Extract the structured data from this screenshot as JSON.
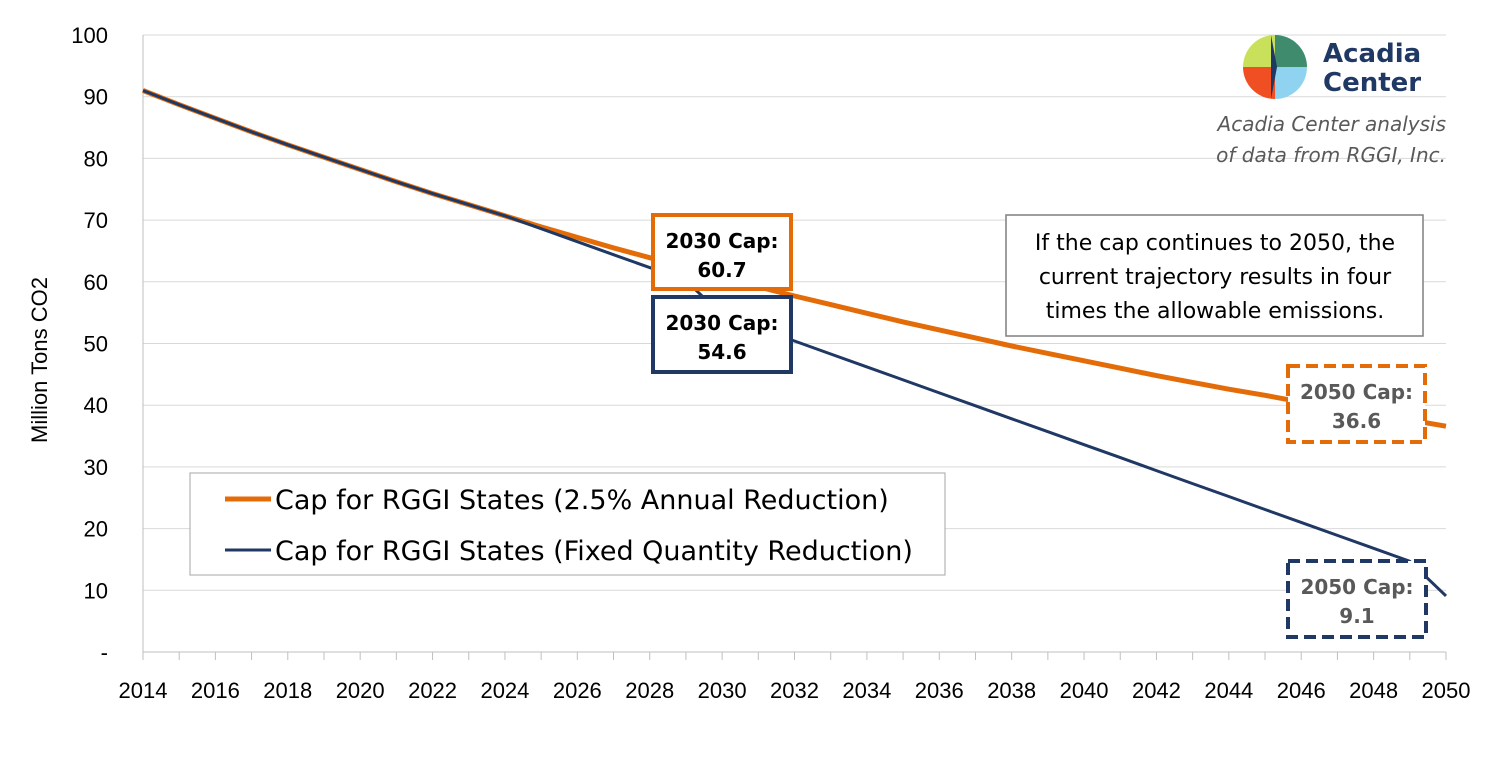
{
  "chart_data": {
    "type": "line",
    "title": "",
    "xlabel": "",
    "ylabel": "Million Tons CO2",
    "xlim": [
      2014,
      2050
    ],
    "ylim": [
      0,
      100
    ],
    "x_ticks": [
      "2014",
      "2016",
      "2018",
      "2020",
      "2022",
      "2024",
      "2026",
      "2028",
      "2030",
      "2032",
      "2034",
      "2036",
      "2038",
      "2040",
      "2042",
      "2044",
      "2046",
      "2048",
      "2050"
    ],
    "y_ticks": [
      "-",
      "10",
      "20",
      "30",
      "40",
      "50",
      "60",
      "70",
      "80",
      "90",
      "100"
    ],
    "grid": true,
    "legend_position": "bottom-left",
    "x": [
      2014,
      2015,
      2016,
      2017,
      2018,
      2019,
      2020,
      2021,
      2022,
      2023,
      2024,
      2025,
      2026,
      2027,
      2028,
      2029,
      2030,
      2031,
      2032,
      2033,
      2034,
      2035,
      2036,
      2037,
      2038,
      2039,
      2040,
      2041,
      2042,
      2043,
      2044,
      2045,
      2046,
      2047,
      2048,
      2049,
      2050
    ],
    "series": [
      {
        "name": "Cap for RGGI States (2.5% Annual Reduction)",
        "color": "#e36c09",
        "values": [
          91.0,
          88.7,
          86.5,
          84.3,
          82.2,
          80.2,
          78.2,
          76.2,
          74.3,
          72.5,
          70.7,
          68.9,
          67.2,
          65.5,
          63.9,
          62.3,
          60.7,
          59.2,
          57.7,
          56.3,
          54.9,
          53.5,
          52.2,
          50.9,
          49.6,
          48.4,
          47.2,
          46.0,
          44.8,
          43.7,
          42.6,
          41.6,
          40.5,
          39.5,
          38.5,
          37.6,
          36.6
        ]
      },
      {
        "name": "Cap for RGGI States (Fixed Quantity Reduction)",
        "color": "#1f3864",
        "values": [
          91.0,
          88.7,
          86.5,
          84.3,
          82.2,
          80.2,
          78.2,
          76.2,
          74.3,
          72.5,
          70.7,
          68.6,
          66.5,
          64.4,
          62.3,
          60.2,
          54.6,
          52.5,
          50.4,
          48.3,
          46.2,
          44.1,
          42.0,
          39.9,
          37.8,
          35.7,
          33.6,
          31.5,
          29.4,
          27.3,
          25.2,
          23.1,
          21.0,
          18.9,
          16.8,
          14.7,
          9.1
        ]
      }
    ],
    "annotations": [
      {
        "text_line1": "2030 Cap:",
        "text_line2": "60.7",
        "series": 0,
        "style": "solid"
      },
      {
        "text_line1": "2030 Cap:",
        "text_line2": "54.6",
        "series": 1,
        "style": "solid"
      },
      {
        "text_line1": "2050 Cap:",
        "text_line2": "36.6",
        "series": 0,
        "style": "dashed"
      },
      {
        "text_line1": "2050 Cap:",
        "text_line2": "9.1",
        "series": 1,
        "style": "dashed"
      }
    ],
    "note": [
      "If the cap continues to 2050, the",
      "current trajectory results in four",
      "times the allowable emissions."
    ],
    "logo": {
      "line1": "Acadia",
      "line2": "Center"
    },
    "source": [
      "Acadia Center analysis",
      "of data from RGGI, Inc."
    ]
  }
}
